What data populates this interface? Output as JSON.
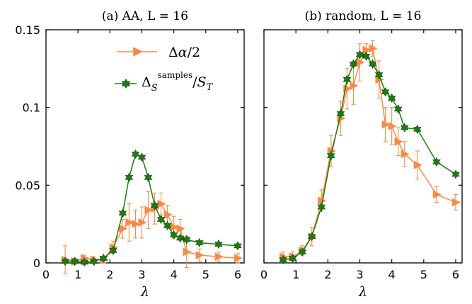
{
  "chart_data": [
    {
      "type": "line",
      "title": "(a) AA, L = 16",
      "xlabel": "λ",
      "ylabel": "",
      "xlim": [
        0,
        6.2
      ],
      "ylim": [
        0,
        0.15
      ],
      "xticks": [
        "0",
        "1",
        "2",
        "3",
        "4",
        "5",
        "6"
      ],
      "yticks": [
        "0",
        "0.05",
        "0.1",
        "0.15"
      ],
      "grid": false,
      "legend": "top-right",
      "series": [
        {
          "name": "Δα/2",
          "color": "#f88a48",
          "marker": "triangle-right",
          "x": [
            0.6,
            0.9,
            1.2,
            1.5,
            1.8,
            2.1,
            2.4,
            2.6,
            2.8,
            3.0,
            3.2,
            3.4,
            3.6,
            3.8,
            4.0,
            4.2,
            4.4,
            4.8,
            5.4,
            6.0
          ],
          "y": [
            0.002,
            0.001,
            0.003,
            0.002,
            0.002,
            0.01,
            0.022,
            0.026,
            0.025,
            0.026,
            0.034,
            0.035,
            0.038,
            0.031,
            0.023,
            0.022,
            0.007,
            0.005,
            0.004,
            0.003
          ],
          "err": [
            0.009,
            0.002,
            0.002,
            0.002,
            0.002,
            0.004,
            0.006,
            0.012,
            0.009,
            0.01,
            0.012,
            0.01,
            0.007,
            0.006,
            0.007,
            0.006,
            0.01,
            0.004,
            0.003,
            0.003
          ]
        },
        {
          "name": "Δ_S^samples/S_T",
          "color": "#1e7a12",
          "marker": "hexagram",
          "x": [
            0.6,
            0.9,
            1.2,
            1.5,
            1.8,
            2.1,
            2.4,
            2.6,
            2.8,
            3.0,
            3.2,
            3.4,
            3.6,
            3.8,
            4.0,
            4.2,
            4.4,
            4.8,
            5.4,
            6.0
          ],
          "y": [
            0.001,
            0.001,
            0.0005,
            0.001,
            0.003,
            0.008,
            0.032,
            0.055,
            0.07,
            0.068,
            0.055,
            0.037,
            0.028,
            0.024,
            0.018,
            0.016,
            0.015,
            0.013,
            0.012,
            0.011
          ]
        }
      ]
    },
    {
      "type": "line",
      "title": "(b) random, L = 16",
      "xlabel": "λ",
      "ylabel": "",
      "xlim": [
        0,
        6.2
      ],
      "ylim": [
        0,
        0.15
      ],
      "xticks": [
        "0",
        "1",
        "2",
        "3",
        "4",
        "5",
        "6"
      ],
      "grid": false,
      "series": [
        {
          "name": "Δα/2",
          "color": "#f88a48",
          "marker": "triangle-right",
          "x": [
            0.6,
            0.9,
            1.2,
            1.5,
            1.8,
            2.1,
            2.4,
            2.6,
            2.8,
            3.0,
            3.2,
            3.4,
            3.6,
            3.8,
            4.0,
            4.2,
            4.4,
            4.8,
            5.4,
            6.0
          ],
          "y": [
            0.004,
            0.004,
            0.008,
            0.017,
            0.04,
            0.072,
            0.093,
            0.112,
            0.114,
            0.129,
            0.137,
            0.138,
            0.118,
            0.089,
            0.088,
            0.078,
            0.07,
            0.063,
            0.044,
            0.039
          ],
          "err": [
            0.003,
            0.003,
            0.003,
            0.006,
            0.007,
            0.01,
            0.011,
            0.013,
            0.012,
            0.012,
            0.004,
            0.005,
            0.012,
            0.011,
            0.012,
            0.009,
            0.008,
            0.009,
            0.005,
            0.005
          ]
        },
        {
          "name": "Δ_S^samples/S_T",
          "color": "#1e7a12",
          "marker": "hexagram",
          "x": [
            0.6,
            0.9,
            1.2,
            1.5,
            1.8,
            2.1,
            2.4,
            2.6,
            2.8,
            3.0,
            3.2,
            3.4,
            3.6,
            3.8,
            4.0,
            4.2,
            4.4,
            4.8,
            5.4,
            6.0
          ],
          "y": [
            0.002,
            0.003,
            0.007,
            0.017,
            0.036,
            0.069,
            0.096,
            0.118,
            0.128,
            0.134,
            0.133,
            0.128,
            0.121,
            0.11,
            0.106,
            0.099,
            0.087,
            0.086,
            0.065,
            0.057
          ]
        }
      ]
    }
  ]
}
